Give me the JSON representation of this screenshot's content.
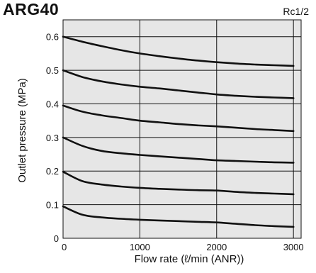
{
  "header": {
    "model": "ARG40",
    "port_size": "Rc1/2"
  },
  "colors": {
    "plot_background": "#e6e6e6",
    "grid": "#111111",
    "curve": "#111111"
  },
  "chart_data": {
    "type": "line",
    "title": "ARG40",
    "xlabel": "Flow rate (ℓ/min (ANR))",
    "ylabel": "Outlet pressure (MPa)",
    "xlim": [
      0,
      3100
    ],
    "ylim": [
      0,
      0.65
    ],
    "xticks": [
      0,
      1000,
      2000,
      3000
    ],
    "xtick_labels": [
      "0",
      "1000",
      "2000",
      "3000"
    ],
    "yticks": [
      0,
      0.1,
      0.2,
      0.3,
      0.4,
      0.5,
      0.6
    ],
    "ytick_labels": [
      "0",
      "0.1",
      "0.2",
      "0.3",
      "0.4",
      "0.5",
      "0.6"
    ],
    "grid": true,
    "series": [
      {
        "x": [
          0,
          250,
          500,
          750,
          1000,
          1250,
          1500,
          1750,
          2000,
          2250,
          2500,
          2750,
          3000
        ],
        "y": [
          0.6,
          0.585,
          0.572,
          0.56,
          0.55,
          0.542,
          0.535,
          0.529,
          0.524,
          0.52,
          0.517,
          0.515,
          0.513
        ]
      },
      {
        "x": [
          0,
          250,
          500,
          750,
          1000,
          1250,
          1500,
          1750,
          2000,
          2250,
          2500,
          2750,
          3000
        ],
        "y": [
          0.5,
          0.48,
          0.467,
          0.458,
          0.451,
          0.446,
          0.44,
          0.434,
          0.428,
          0.424,
          0.421,
          0.419,
          0.417
        ]
      },
      {
        "x": [
          0,
          250,
          500,
          750,
          1000,
          1250,
          1500,
          1750,
          2000,
          2250,
          2500,
          2750,
          3000
        ],
        "y": [
          0.395,
          0.377,
          0.366,
          0.358,
          0.35,
          0.345,
          0.34,
          0.336,
          0.333,
          0.329,
          0.325,
          0.322,
          0.319
        ]
      },
      {
        "x": [
          0,
          250,
          500,
          750,
          1000,
          1250,
          1500,
          1750,
          2000,
          2250,
          2500,
          2750,
          3000
        ],
        "y": [
          0.3,
          0.275,
          0.26,
          0.253,
          0.248,
          0.244,
          0.24,
          0.236,
          0.232,
          0.23,
          0.228,
          0.226,
          0.225
        ]
      },
      {
        "x": [
          0,
          250,
          500,
          750,
          1000,
          1250,
          1500,
          1750,
          2000,
          2250,
          2500,
          2750,
          3000
        ],
        "y": [
          0.198,
          0.17,
          0.16,
          0.154,
          0.15,
          0.147,
          0.145,
          0.143,
          0.142,
          0.138,
          0.135,
          0.133,
          0.131
        ]
      },
      {
        "x": [
          0,
          250,
          500,
          750,
          1000,
          1250,
          1500,
          1750,
          2000,
          2250,
          2500,
          2750,
          3000
        ],
        "y": [
          0.095,
          0.07,
          0.062,
          0.058,
          0.055,
          0.053,
          0.051,
          0.049,
          0.047,
          0.043,
          0.039,
          0.036,
          0.034
        ]
      }
    ]
  }
}
